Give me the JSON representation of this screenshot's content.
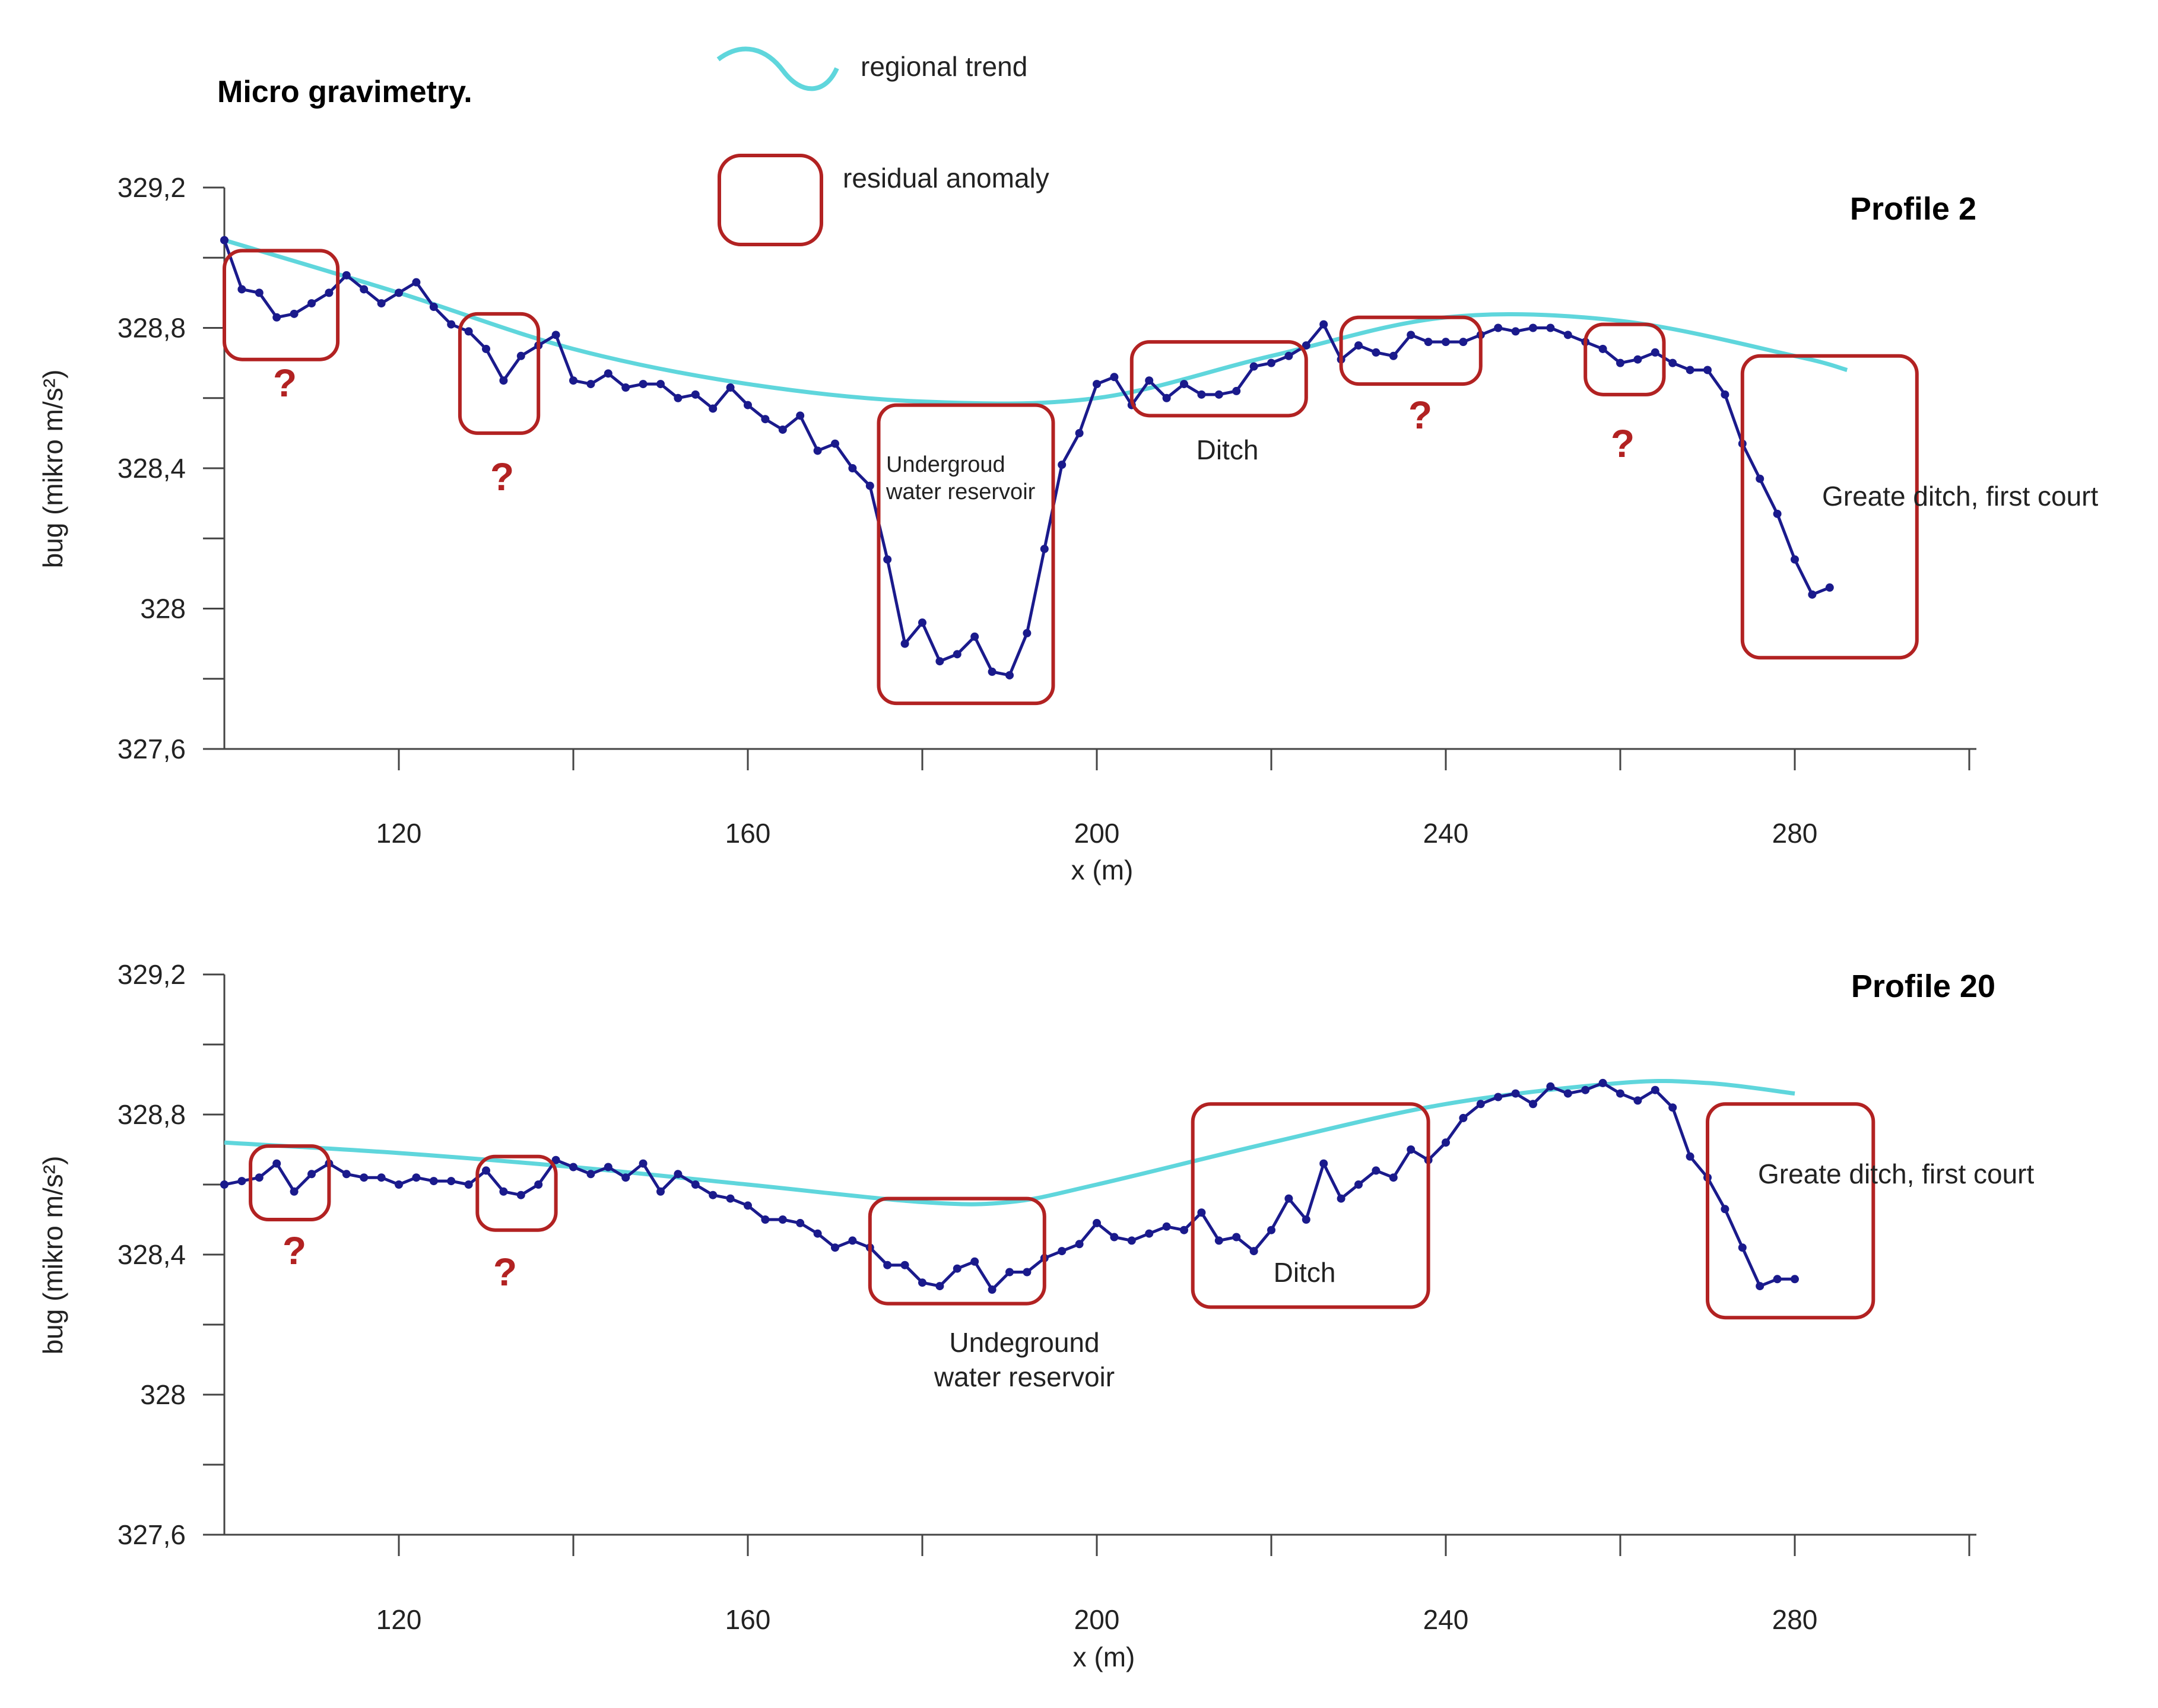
{
  "title": "Micro gravimetry.",
  "legend": {
    "trend_label": "regional trend",
    "anomaly_label": "residual anomaly"
  },
  "colors": {
    "measured": "#1a1a8c",
    "trend": "#5fd6dc",
    "anomaly": "#b22222",
    "axis": "#444444",
    "question": "#b22222"
  },
  "chart_data": [
    {
      "type": "line",
      "title": "Profile 2",
      "xlabel": "x (m)",
      "ylabel": "bug (mikro m/s²)",
      "xlim": [
        100,
        300
      ],
      "ylim": [
        327.6,
        329.2
      ],
      "x_ticks": [
        {
          "value": 120,
          "label": "120"
        },
        {
          "value": 160,
          "label": "160"
        },
        {
          "value": 200,
          "label": "200"
        },
        {
          "value": 240,
          "label": "240"
        },
        {
          "value": 280,
          "label": "280"
        }
      ],
      "y_ticks": [
        {
          "value": 329.2,
          "label": "329,2"
        },
        {
          "value": 328.8,
          "label": "328,8"
        },
        {
          "value": 328.4,
          "label": "328,4"
        },
        {
          "value": 328.0,
          "label": "328"
        },
        {
          "value": 327.6,
          "label": "327,6"
        }
      ],
      "series": [
        {
          "name": "measured",
          "x": [
            100,
            102,
            104,
            106,
            108,
            110,
            112,
            114,
            116,
            118,
            120,
            122,
            124,
            126,
            128,
            130,
            132,
            134,
            136,
            138,
            140,
            142,
            144,
            146,
            148,
            150,
            152,
            154,
            156,
            158,
            160,
            162,
            164,
            166,
            168,
            170,
            172,
            174,
            176,
            178,
            180,
            182,
            184,
            186,
            188,
            190,
            192,
            194,
            196,
            198,
            200,
            202,
            204,
            206,
            208,
            210,
            212,
            214,
            216,
            218,
            220,
            222,
            224,
            226,
            228,
            230,
            232,
            234,
            236,
            238,
            240,
            242,
            244,
            246,
            248,
            250,
            252,
            254,
            256,
            258,
            260,
            262,
            264,
            266,
            268,
            270,
            272,
            274,
            276,
            278,
            280,
            282,
            284
          ],
          "y": [
            329.05,
            328.91,
            328.9,
            328.83,
            328.84,
            328.87,
            328.9,
            328.95,
            328.91,
            328.87,
            328.9,
            328.93,
            328.86,
            328.81,
            328.79,
            328.74,
            328.65,
            328.72,
            328.75,
            328.78,
            328.65,
            328.64,
            328.67,
            328.63,
            328.64,
            328.64,
            328.6,
            328.61,
            328.57,
            328.63,
            328.58,
            328.54,
            328.51,
            328.55,
            328.45,
            328.47,
            328.4,
            328.35,
            328.14,
            327.9,
            327.96,
            327.85,
            327.87,
            327.92,
            327.82,
            327.81,
            327.93,
            328.17,
            328.41,
            328.5,
            328.64,
            328.66,
            328.58,
            328.65,
            328.6,
            328.64,
            328.61,
            328.61,
            328.62,
            328.69,
            328.7,
            328.72,
            328.75,
            328.81,
            328.71,
            328.75,
            328.73,
            328.72,
            328.78,
            328.76,
            328.76,
            328.76,
            328.78,
            328.8,
            328.79,
            328.8,
            328.8,
            328.78,
            328.76,
            328.74,
            328.7,
            328.71,
            328.73,
            328.7,
            328.68,
            328.68,
            328.61,
            328.47,
            328.37,
            328.27,
            328.14,
            328.04,
            328.06
          ]
        },
        {
          "name": "regional trend",
          "x": [
            100,
            120,
            140,
            160,
            180,
            200,
            220,
            240,
            260,
            280,
            286
          ],
          "y": [
            329.05,
            328.9,
            328.74,
            328.64,
            328.59,
            328.6,
            328.72,
            328.83,
            328.82,
            328.72,
            328.68
          ]
        }
      ],
      "anomalies": [
        {
          "x": [
            100,
            113
          ],
          "y": [
            328.71,
            329.02
          ],
          "label": "?"
        },
        {
          "x": [
            127,
            136
          ],
          "y": [
            328.5,
            328.84
          ],
          "label": "?"
        },
        {
          "x": [
            175,
            195
          ],
          "y": [
            327.73,
            328.58
          ],
          "label": "Undergroud water reservoir"
        },
        {
          "x": [
            204,
            224
          ],
          "y": [
            328.55,
            328.76
          ],
          "label": "Ditch"
        },
        {
          "x": [
            228,
            244
          ],
          "y": [
            328.64,
            328.83
          ],
          "label": "?"
        },
        {
          "x": [
            256,
            265
          ],
          "y": [
            328.61,
            328.81
          ],
          "label": "?"
        },
        {
          "x": [
            274,
            294
          ],
          "y": [
            327.86,
            328.72
          ],
          "label": "Greate ditch, first court"
        }
      ]
    },
    {
      "type": "line",
      "title": "Profile 20",
      "xlabel": "x (m)",
      "ylabel": "bug (mikro m/s²)",
      "xlim": [
        100,
        300
      ],
      "ylim": [
        327.6,
        329.2
      ],
      "x_ticks": [
        {
          "value": 120,
          "label": "120"
        },
        {
          "value": 160,
          "label": "160"
        },
        {
          "value": 200,
          "label": "200"
        },
        {
          "value": 240,
          "label": "240"
        },
        {
          "value": 280,
          "label": "280"
        }
      ],
      "y_ticks": [
        {
          "value": 329.2,
          "label": "329,2"
        },
        {
          "value": 328.8,
          "label": "328,8"
        },
        {
          "value": 328.4,
          "label": "328,4"
        },
        {
          "value": 328.0,
          "label": "328"
        },
        {
          "value": 327.6,
          "label": "327,6"
        }
      ],
      "series": [
        {
          "name": "measured",
          "x": [
            100,
            102,
            104,
            106,
            108,
            110,
            112,
            114,
            116,
            118,
            120,
            122,
            124,
            126,
            128,
            130,
            132,
            134,
            136,
            138,
            140,
            142,
            144,
            146,
            148,
            150,
            152,
            154,
            156,
            158,
            160,
            162,
            164,
            166,
            168,
            170,
            172,
            174,
            176,
            178,
            180,
            182,
            184,
            186,
            188,
            190,
            192,
            194,
            196,
            198,
            200,
            202,
            204,
            206,
            208,
            210,
            212,
            214,
            216,
            218,
            220,
            222,
            224,
            226,
            228,
            230,
            232,
            234,
            236,
            238,
            240,
            242,
            244,
            246,
            248,
            250,
            252,
            254,
            256,
            258,
            260,
            262,
            264,
            266,
            268,
            270,
            272,
            274,
            276,
            278,
            280
          ],
          "y": [
            328.6,
            328.61,
            328.62,
            328.66,
            328.58,
            328.63,
            328.66,
            328.63,
            328.62,
            328.62,
            328.6,
            328.62,
            328.61,
            328.61,
            328.6,
            328.64,
            328.58,
            328.57,
            328.6,
            328.67,
            328.65,
            328.63,
            328.65,
            328.62,
            328.66,
            328.58,
            328.63,
            328.6,
            328.57,
            328.56,
            328.54,
            328.5,
            328.5,
            328.49,
            328.46,
            328.42,
            328.44,
            328.42,
            328.37,
            328.37,
            328.32,
            328.31,
            328.36,
            328.38,
            328.3,
            328.35,
            328.35,
            328.39,
            328.41,
            328.43,
            328.49,
            328.45,
            328.44,
            328.46,
            328.48,
            328.47,
            328.52,
            328.44,
            328.45,
            328.41,
            328.47,
            328.56,
            328.5,
            328.66,
            328.56,
            328.6,
            328.64,
            328.62,
            328.7,
            328.67,
            328.72,
            328.79,
            328.83,
            328.85,
            328.86,
            328.83,
            328.88,
            328.86,
            328.87,
            328.89,
            328.86,
            328.84,
            328.87,
            328.82,
            328.68,
            328.62,
            328.53,
            328.42,
            328.31,
            328.33,
            328.33
          ]
        },
        {
          "name": "regional trend",
          "x": [
            100,
            120,
            140,
            160,
            180,
            190,
            200,
            220,
            240,
            260,
            270,
            280
          ],
          "y": [
            328.72,
            328.69,
            328.65,
            328.6,
            328.55,
            328.55,
            328.6,
            328.72,
            328.83,
            328.89,
            328.89,
            328.86
          ]
        }
      ],
      "anomalies": [
        {
          "x": [
            103,
            112
          ],
          "y": [
            328.5,
            328.71
          ],
          "label": "?"
        },
        {
          "x": [
            129,
            138
          ],
          "y": [
            328.47,
            328.68
          ],
          "label": "?"
        },
        {
          "x": [
            174,
            194
          ],
          "y": [
            328.26,
            328.56
          ],
          "label": "Undeground water reservoir"
        },
        {
          "x": [
            211,
            238
          ],
          "y": [
            328.25,
            328.83
          ],
          "label": "Ditch"
        },
        {
          "x": [
            270,
            289
          ],
          "y": [
            328.22,
            328.83
          ],
          "label": "Greate ditch, first court"
        }
      ]
    }
  ]
}
